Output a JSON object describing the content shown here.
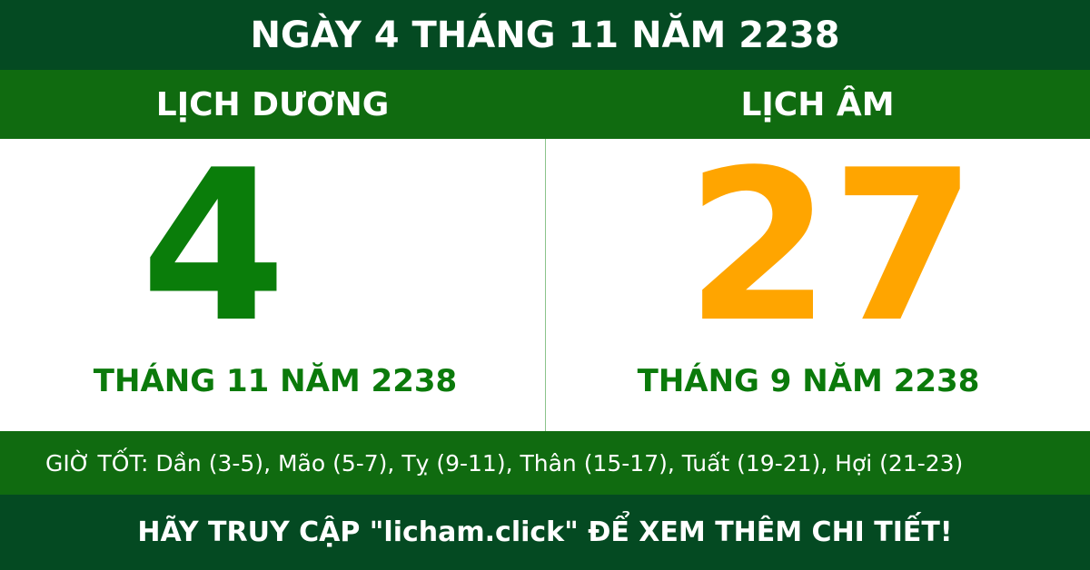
{
  "header": {
    "title": "NGÀY 4 THÁNG 11 NĂM 2238"
  },
  "solar": {
    "label": "LỊCH DƯƠNG",
    "day": "4",
    "month_year": "THÁNG 11 NĂM 2238"
  },
  "lunar": {
    "label": "LỊCH ÂM",
    "day": "27",
    "month_year": "THÁNG 9 NĂM 2238"
  },
  "good_hours": "GIỜ TỐT: Dần (3-5), Mão (5-7), Tỵ (9-11), Thân (15-17), Tuất (19-21), Hợi (21-23)",
  "footer": "HÃY TRUY CẬP \"licham.click\" ĐỂ XEM THÊM CHI TIẾT!",
  "colors": {
    "dark_green": "#044a22",
    "green_band": "#106b10",
    "solar_day": "#0a7d0a",
    "lunar_day": "#ffa500"
  }
}
